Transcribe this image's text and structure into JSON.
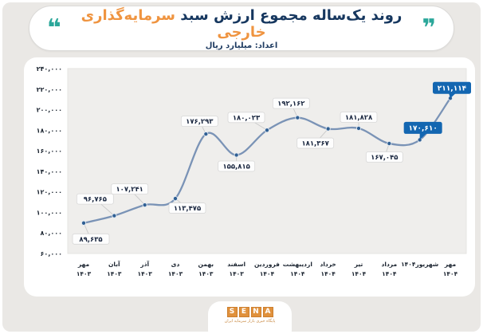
{
  "header": {
    "left_quote": "❝",
    "right_quote": "❞",
    "title_main": "روند یک‌ساله مجموع ارزش سبد",
    "title_accent": "سرمایه‌گذاری خارجی",
    "subtitle": "اعداد: میلیارد ریال"
  },
  "colors": {
    "navy": "#16375f",
    "orange": "#ef9440",
    "teal": "#2ba79a",
    "line": "#7a93b6",
    "dot": "#2f5f93",
    "highlight": "#1366b1",
    "label_text": "#1a2740",
    "label_border": "#d8d8d8",
    "leader_line": "#c9c9c9",
    "plot_bg": "#efeeec",
    "axis_text": "#1b2430"
  },
  "chart_data": {
    "type": "line",
    "title": "روند یک‌ساله مجموع ارزش سبد سرمایه‌گذاری خارجی",
    "unit": "میلیارد ریال",
    "categories": [
      {
        "month": "مهر",
        "year": "۱۴۰۳"
      },
      {
        "month": "آبان",
        "year": "۱۴۰۳"
      },
      {
        "month": "آذر",
        "year": "۱۴۰۳"
      },
      {
        "month": "دی",
        "year": "۱۴۰۳"
      },
      {
        "month": "بهمن",
        "year": "۱۴۰۳"
      },
      {
        "month": "اسفند",
        "year": "۱۴۰۳"
      },
      {
        "month": "فروردین",
        "year": "۱۴۰۴"
      },
      {
        "month": "اردیبهشت",
        "year": "۱۴۰۴"
      },
      {
        "month": "خرداد",
        "year": "۱۴۰۴"
      },
      {
        "month": "تیر",
        "year": "۱۴۰۴"
      },
      {
        "month": "مرداد",
        "year": "۱۴۰۴"
      },
      {
        "month": "شهریور۱۴۰۴",
        "year": ""
      },
      {
        "month": "مهر",
        "year": "۱۴۰۴"
      }
    ],
    "values": [
      89635,
      96765,
      107241,
      113475,
      176293,
      155815,
      180023,
      192162,
      181367,
      181828,
      167045,
      170610,
      211114
    ],
    "value_labels": [
      "۸۹,۶۳۵",
      "۹۶,۷۶۵",
      "۱۰۷,۲۴۱",
      "۱۱۳,۴۷۵",
      "۱۷۶,۲۹۳",
      "۱۵۵,۸۱۵",
      "۱۸۰,۰۲۳",
      "۱۹۲,۱۶۲",
      "۱۸۱,۳۶۷",
      "۱۸۱,۸۲۸",
      "۱۶۷,۰۴۵",
      "۱۷۰,۶۱۰",
      "۲۱۱,۱۱۴"
    ],
    "highlighted_indices": [
      11,
      12
    ],
    "ylim": [
      60000,
      240000
    ],
    "y_ticks": [
      {
        "v": 60000,
        "label": "۶۰,۰۰۰"
      },
      {
        "v": 80000,
        "label": "۸۰,۰۰۰"
      },
      {
        "v": 100000,
        "label": "۱۰۰,۰۰۰"
      },
      {
        "v": 120000,
        "label": "۱۲۰,۰۰۰"
      },
      {
        "v": 140000,
        "label": "۱۴۰,۰۰۰"
      },
      {
        "v": 160000,
        "label": "۱۶۰,۰۰۰"
      },
      {
        "v": 180000,
        "label": "۱۸۰,۰۰۰"
      },
      {
        "v": 200000,
        "label": "۲۰۰,۰۰۰"
      },
      {
        "v": 220000,
        "label": "۲۲۰,۰۰۰"
      },
      {
        "v": 240000,
        "label": "۲۴۰,۰۰۰"
      }
    ],
    "grid": false,
    "legend": false
  },
  "footer": {
    "logo_letters": [
      "S",
      "E",
      "N",
      "A"
    ],
    "caption": "پایگاه خبری بازار سرمایه ایران"
  }
}
